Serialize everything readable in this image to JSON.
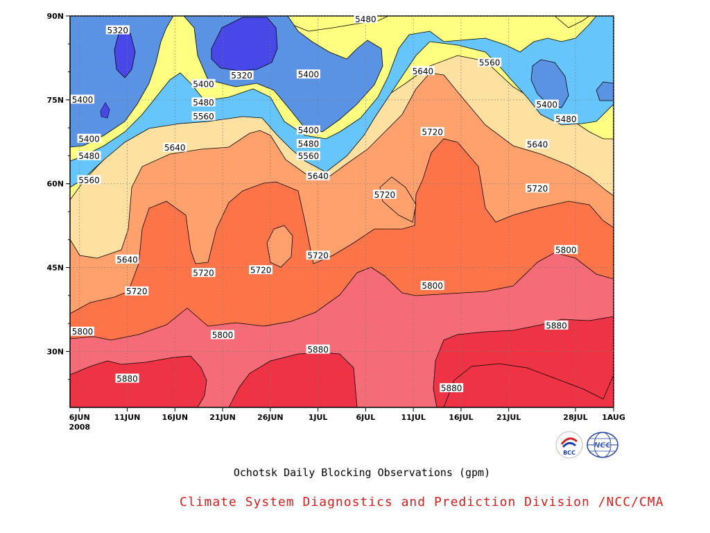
{
  "chart_data": {
    "type": "heatmap",
    "variable": "500 hPa geopotential height contours (filled)",
    "title": "Ochotsk Daily Blocking Observations (gpm)",
    "x_ticks": [
      "6JUN",
      "11JUN",
      "16JUN",
      "21JUN",
      "26JUN",
      "1JUL",
      "6JUL",
      "11JUL",
      "16JUL",
      "21JUL",
      "28JUL",
      "1AUG"
    ],
    "x_year": "2008",
    "y_ticks": [
      "90N",
      "75N",
      "60N",
      "45N",
      "30N"
    ],
    "ylim": [
      20,
      90
    ],
    "xlim": [
      "2008-06-05",
      "2008-08-01"
    ],
    "contour_levels": [
      5320,
      5400,
      5480,
      5560,
      5640,
      5720,
      5800,
      5880
    ],
    "fill_colors": [
      "#4848e8",
      "#5a92e4",
      "#66c6fb",
      "#fefe80",
      "#fee0a0",
      "#fea16c",
      "#fe7449",
      "#f56b77",
      "#ee3444"
    ],
    "contour_labels": [
      {
        "value": 5320,
        "x": "2008-06-10",
        "y": 87.4
      },
      {
        "value": 5320,
        "x": "2008-06-23",
        "y": 79.3
      },
      {
        "value": 5400,
        "x": "2008-06-05",
        "y": 75.0
      },
      {
        "value": 5400,
        "x": "2008-06-19",
        "y": 77.8
      },
      {
        "value": 5400,
        "x": "2008-06-30",
        "y": 79.5
      },
      {
        "value": 5400,
        "x": "2008-06-30",
        "y": 69.5
      },
      {
        "value": 5400,
        "x": "2008-06-07",
        "y": 68.0
      },
      {
        "value": 5400,
        "x": "2008-07-25",
        "y": 74.1
      },
      {
        "value": 5480,
        "x": "2008-07-06",
        "y": 89.4
      },
      {
        "value": 5480,
        "x": "2008-06-19",
        "y": 74.5
      },
      {
        "value": 5480,
        "x": "2008-06-30",
        "y": 67.1
      },
      {
        "value": 5480,
        "x": "2008-06-07",
        "y": 64.9
      },
      {
        "value": 5480,
        "x": "2008-07-27",
        "y": 71.5
      },
      {
        "value": 5560,
        "x": "2008-07-19",
        "y": 81.6
      },
      {
        "value": 5560,
        "x": "2008-06-19",
        "y": 72.0
      },
      {
        "value": 5560,
        "x": "2008-06-30",
        "y": 64.9
      },
      {
        "value": 5560,
        "x": "2008-06-07",
        "y": 60.6
      },
      {
        "value": 5640,
        "x": "2008-07-12",
        "y": 80.1
      },
      {
        "value": 5640,
        "x": "2008-06-16",
        "y": 66.4
      },
      {
        "value": 5640,
        "x": "2008-07-01",
        "y": 61.3
      },
      {
        "value": 5640,
        "x": "2008-07-24",
        "y": 67.0
      },
      {
        "value": 5640,
        "x": "2008-06-11",
        "y": 46.4
      },
      {
        "value": 5720,
        "x": "2008-07-13",
        "y": 69.2
      },
      {
        "value": 5720,
        "x": "2008-07-08",
        "y": 58.0
      },
      {
        "value": 5720,
        "x": "2008-07-24",
        "y": 59.1
      },
      {
        "value": 5720,
        "x": "2008-06-19",
        "y": 44.0
      },
      {
        "value": 5720,
        "x": "2008-06-25",
        "y": 44.5
      },
      {
        "value": 5720,
        "x": "2008-07-01",
        "y": 47.1
      },
      {
        "value": 5720,
        "x": "2008-06-12",
        "y": 40.7
      },
      {
        "value": 5800,
        "x": "2008-07-13",
        "y": 41.7
      },
      {
        "value": 5800,
        "x": "2008-07-27",
        "y": 48.1
      },
      {
        "value": 5800,
        "x": "2008-06-21",
        "y": 32.9
      },
      {
        "value": 5800,
        "x": "2008-06-06",
        "y": 33.5
      },
      {
        "value": 5880,
        "x": "2008-07-01",
        "y": 30.3
      },
      {
        "value": 5880,
        "x": "2008-06-11",
        "y": 25.1
      },
      {
        "value": 5880,
        "x": "2008-07-15",
        "y": 23.4
      },
      {
        "value": 5880,
        "x": "2008-07-26",
        "y": 34.6
      }
    ]
  },
  "credit": "Climate System Diagnostics and Prediction Division /NCC/CMA",
  "logos": [
    {
      "name": "bcc-logo",
      "text": "BCC"
    },
    {
      "name": "ncc-logo",
      "text": "NCC"
    }
  ]
}
